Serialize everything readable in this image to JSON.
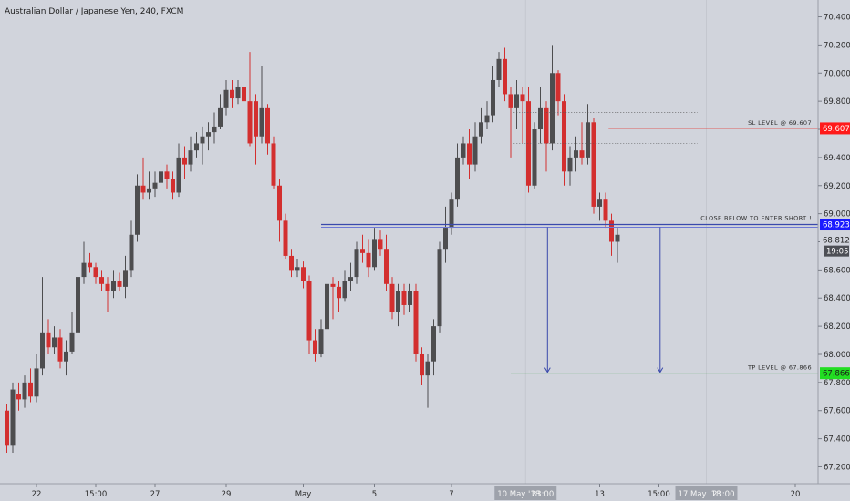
{
  "chart_data": {
    "type": "candlestick",
    "title": "Australian Dollar / Japanese Yen, 240, FXCM",
    "ylim": [
      67.08,
      70.52
    ],
    "y_ticks": [
      "70.400",
      "70.200",
      "70.000",
      "69.800",
      "69.600",
      "69.400",
      "69.200",
      "69.000",
      "68.800",
      "68.600",
      "68.400",
      "68.200",
      "68.000",
      "67.800",
      "67.600",
      "67.400",
      "67.200"
    ],
    "x_ticks": [
      {
        "label": "22",
        "i": 5
      },
      {
        "label": "15:00",
        "i": 15
      },
      {
        "label": "27",
        "i": 25
      },
      {
        "label": "29",
        "i": 37
      },
      {
        "label": "May",
        "i": 50
      },
      {
        "label": "5",
        "i": 62
      },
      {
        "label": "7",
        "i": 75
      },
      {
        "label": "13",
        "i": 100
      },
      {
        "label": "15:00",
        "i": 110
      },
      {
        "label": "20",
        "i": 133
      }
    ],
    "cursor_labels": [
      {
        "label": "10 May '18",
        "time": "23:00",
        "i": 87.5
      },
      {
        "label": "17 May '18",
        "time": "23:00",
        "i": 118
      }
    ],
    "candles": [
      [
        67.6,
        67.35,
        67.65,
        67.3
      ],
      [
        67.35,
        67.75,
        67.8,
        67.3
      ],
      [
        67.72,
        67.68,
        67.8,
        67.6
      ],
      [
        67.68,
        67.8,
        67.85,
        67.62
      ],
      [
        67.8,
        67.7,
        67.9,
        67.66
      ],
      [
        67.7,
        67.9,
        68.0,
        67.66
      ],
      [
        67.9,
        68.15,
        68.55,
        67.85
      ],
      [
        68.15,
        68.05,
        68.25,
        68.0
      ],
      [
        68.05,
        68.12,
        68.2,
        68.0
      ],
      [
        68.12,
        67.95,
        68.18,
        67.9
      ],
      [
        67.95,
        68.02,
        68.1,
        67.85
      ],
      [
        68.02,
        68.15,
        68.3,
        68.0
      ],
      [
        68.15,
        68.55,
        68.75,
        68.1
      ],
      [
        68.55,
        68.65,
        68.8,
        68.5
      ],
      [
        68.65,
        68.62,
        68.72,
        68.58
      ],
      [
        68.62,
        68.55,
        68.65,
        68.5
      ],
      [
        68.55,
        68.5,
        68.6,
        68.45
      ],
      [
        68.5,
        68.45,
        68.55,
        68.3
      ],
      [
        68.45,
        68.52,
        68.6,
        68.4
      ],
      [
        68.52,
        68.48,
        68.58,
        68.45
      ],
      [
        68.48,
        68.6,
        68.7,
        68.4
      ],
      [
        68.6,
        68.85,
        68.95,
        68.55
      ],
      [
        68.85,
        69.2,
        69.28,
        68.8
      ],
      [
        69.2,
        69.15,
        69.4,
        69.1
      ],
      [
        69.15,
        69.18,
        69.3,
        69.1
      ],
      [
        69.18,
        69.22,
        69.3,
        69.12
      ],
      [
        69.22,
        69.3,
        69.38,
        69.15
      ],
      [
        69.3,
        69.25,
        69.35,
        69.18
      ],
      [
        69.25,
        69.15,
        69.3,
        69.1
      ],
      [
        69.15,
        69.4,
        69.5,
        69.12
      ],
      [
        69.4,
        69.35,
        69.48,
        69.25
      ],
      [
        69.35,
        69.45,
        69.55,
        69.3
      ],
      [
        69.45,
        69.5,
        69.58,
        69.4
      ],
      [
        69.5,
        69.55,
        69.62,
        69.35
      ],
      [
        69.55,
        69.58,
        69.65,
        69.45
      ],
      [
        69.58,
        69.62,
        69.72,
        69.5
      ],
      [
        69.62,
        69.75,
        69.85,
        69.6
      ],
      [
        69.75,
        69.88,
        69.95,
        69.7
      ],
      [
        69.88,
        69.82,
        69.95,
        69.75
      ],
      [
        69.82,
        69.9,
        69.95,
        69.78
      ],
      [
        69.9,
        69.8,
        69.95,
        69.78
      ],
      [
        69.8,
        69.5,
        70.15,
        69.48
      ],
      [
        69.8,
        69.55,
        69.85,
        69.35
      ],
      [
        69.55,
        69.75,
        70.05,
        69.5
      ],
      [
        69.75,
        69.5,
        69.78,
        69.42
      ],
      [
        69.5,
        69.2,
        69.55,
        69.18
      ],
      [
        69.2,
        68.95,
        69.25,
        68.8
      ],
      [
        68.95,
        68.7,
        69.0,
        68.68
      ],
      [
        68.7,
        68.6,
        68.75,
        68.55
      ],
      [
        68.6,
        68.62,
        68.68,
        68.55
      ],
      [
        68.62,
        68.52,
        68.66,
        68.47
      ],
      [
        68.52,
        68.1,
        68.56,
        68.0
      ],
      [
        68.1,
        68.0,
        68.18,
        67.95
      ],
      [
        68.0,
        68.18,
        68.25,
        67.98
      ],
      [
        68.18,
        68.5,
        68.55,
        68.15
      ],
      [
        68.5,
        68.48,
        68.55,
        68.25
      ],
      [
        68.48,
        68.4,
        68.52,
        68.3
      ],
      [
        68.4,
        68.52,
        68.6,
        68.38
      ],
      [
        68.52,
        68.55,
        68.65,
        68.45
      ],
      [
        68.55,
        68.75,
        68.8,
        68.5
      ],
      [
        68.75,
        68.72,
        68.85,
        68.65
      ],
      [
        68.72,
        68.62,
        68.82,
        68.55
      ],
      [
        68.62,
        68.82,
        68.9,
        68.6
      ],
      [
        68.82,
        68.75,
        68.88,
        68.7
      ],
      [
        68.75,
        68.5,
        68.85,
        68.45
      ],
      [
        68.5,
        68.3,
        68.55,
        68.25
      ],
      [
        68.3,
        68.45,
        68.5,
        68.2
      ],
      [
        68.45,
        68.35,
        68.5,
        68.28
      ],
      [
        68.35,
        68.45,
        68.5,
        68.3
      ],
      [
        68.45,
        68.0,
        68.5,
        67.95
      ],
      [
        68.0,
        67.85,
        68.05,
        67.78
      ],
      [
        67.85,
        67.95,
        68.0,
        67.62
      ],
      [
        67.95,
        68.2,
        68.25,
        67.85
      ],
      [
        68.2,
        68.75,
        68.8,
        68.15
      ],
      [
        68.75,
        68.9,
        69.05,
        68.65
      ],
      [
        68.9,
        69.1,
        69.15,
        68.85
      ],
      [
        69.1,
        69.4,
        69.5,
        69.05
      ],
      [
        69.4,
        69.5,
        69.55,
        69.35
      ],
      [
        69.5,
        69.35,
        69.6,
        69.25
      ],
      [
        69.35,
        69.55,
        69.65,
        69.3
      ],
      [
        69.55,
        69.65,
        69.75,
        69.5
      ],
      [
        69.65,
        69.7,
        69.8,
        69.6
      ],
      [
        69.7,
        69.95,
        70.05,
        69.65
      ],
      [
        69.95,
        70.1,
        70.15,
        69.9
      ],
      [
        70.1,
        69.85,
        70.18,
        69.8
      ],
      [
        69.85,
        69.75,
        69.9,
        69.4
      ],
      [
        69.75,
        69.85,
        69.95,
        69.6
      ],
      [
        69.85,
        69.8,
        69.9,
        69.5
      ],
      [
        69.8,
        69.2,
        69.9,
        69.15
      ],
      [
        69.2,
        69.6,
        69.65,
        69.18
      ],
      [
        69.6,
        69.75,
        69.9,
        69.5
      ],
      [
        69.75,
        69.5,
        69.8,
        69.3
      ],
      [
        69.5,
        70.0,
        70.2,
        69.45
      ],
      [
        70.0,
        69.8,
        70.02,
        69.7
      ],
      [
        69.8,
        69.3,
        69.85,
        69.2
      ],
      [
        69.3,
        69.4,
        69.48,
        69.2
      ],
      [
        69.4,
        69.45,
        69.55,
        69.3
      ],
      [
        69.45,
        69.4,
        69.65,
        69.35
      ],
      [
        69.4,
        69.65,
        69.78,
        69.35
      ],
      [
        69.65,
        69.05,
        69.68,
        69.0
      ],
      [
        69.05,
        69.1,
        69.15,
        68.95
      ],
      [
        69.1,
        68.95,
        69.15,
        68.9
      ],
      [
        68.95,
        68.8,
        69.0,
        68.7
      ],
      [
        68.8,
        68.85,
        68.9,
        68.65
      ]
    ],
    "annotations": {
      "sl_label": "SL LEVEL @ 69.607",
      "sl_value": 69.607,
      "entry_label": "CLOSE BELOW TO ENTER SHORT !",
      "entry_value": 68.923,
      "tp_label": "TP LEVEL @ 67.866",
      "tp_value": 67.866,
      "current_value": 68.812,
      "current_text": "68.812",
      "countdown": "19:05",
      "sl_badge": "69.607",
      "entry_badge": "68.923",
      "tp_badge": "67.866"
    }
  },
  "colors": {
    "background": "#d1d4dc",
    "bull": "#4d4d4f",
    "bear": "#d32f2f",
    "sl_line": "#e53935",
    "entry_line": "#3949ab",
    "tp_line": "#43a047",
    "sl_badge_bg": "#ff1a1a",
    "entry_badge_bg": "#1a1aff",
    "tp_badge_bg": "#22dd22",
    "axis_text": "#2b2b2b"
  }
}
